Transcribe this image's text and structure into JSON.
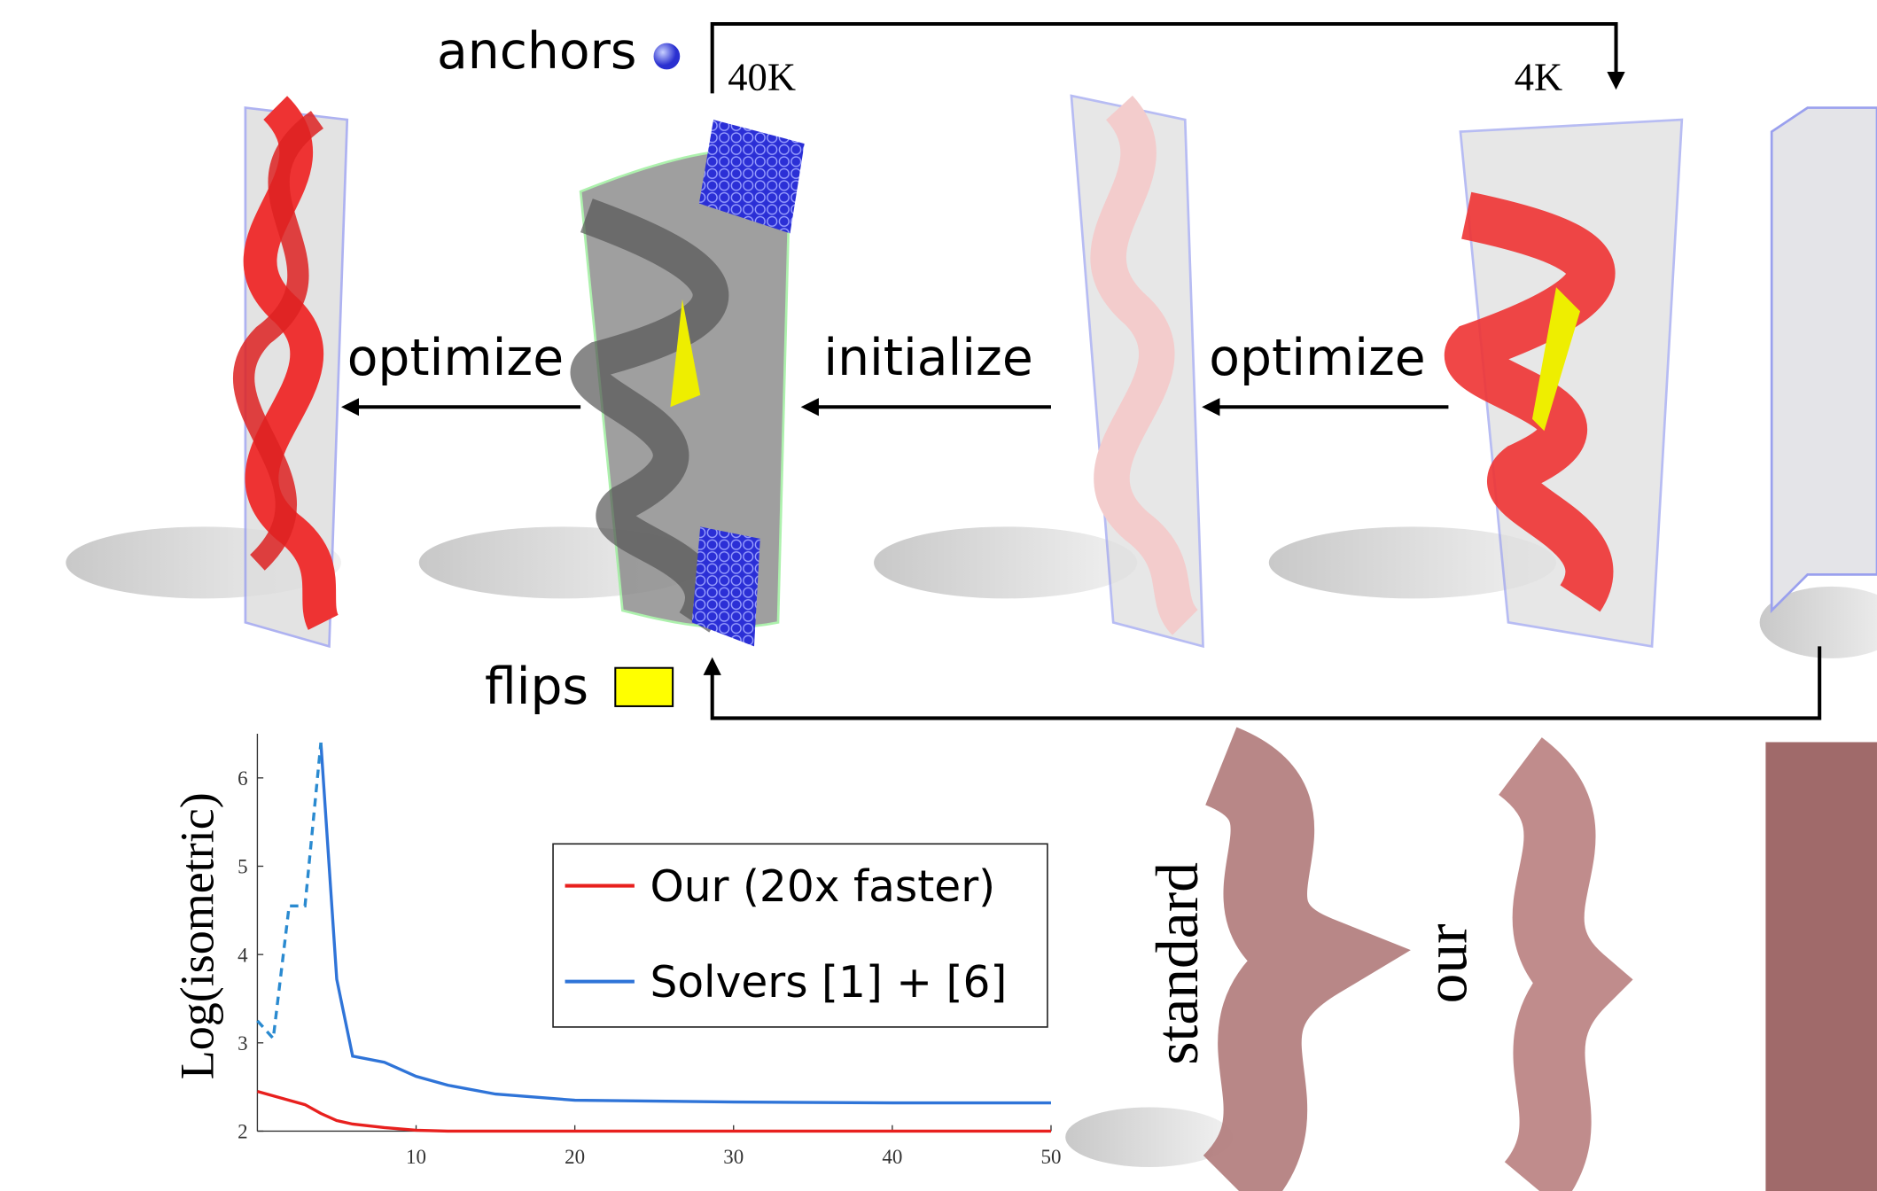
{
  "labels": {
    "anchors": "anchors",
    "res_high": "40K",
    "res_low": "4K",
    "flips": "flips",
    "step_left": "optimize",
    "step_middle": "initialize",
    "step_right": "optimize",
    "standard": "standard",
    "our": "our"
  },
  "chart_data": {
    "type": "line",
    "y_label": "Log(isometric)",
    "x": [
      0,
      1,
      2,
      3,
      4,
      5,
      6,
      8,
      10,
      12,
      15,
      20,
      30,
      40,
      50
    ],
    "series": [
      {
        "name": "Our (20x faster)",
        "color": "#e8201e",
        "values": [
          2.45,
          2.4,
          2.35,
          2.3,
          2.2,
          2.12,
          2.08,
          2.04,
          2.01,
          2.0,
          2.0,
          2.0,
          2.0,
          2.0,
          2.0
        ]
      },
      {
        "name": "Solvers [1] + [6]",
        "color": "#2f74d8",
        "values": [
          null,
          null,
          null,
          null,
          6.4,
          3.72,
          2.85,
          2.78,
          2.62,
          2.52,
          2.42,
          2.35,
          2.33,
          2.32,
          2.32
        ]
      },
      {
        "color": "#2a8ad0",
        "dashed": true,
        "values": [
          3.25,
          3.05,
          4.55,
          4.55,
          6.4,
          null,
          null,
          null,
          null,
          null,
          null,
          null,
          null,
          null,
          null
        ]
      }
    ],
    "xlim": [
      0,
      50
    ],
    "ylim": [
      2,
      6.5
    ],
    "xticks": [
      10,
      20,
      30,
      40,
      50
    ],
    "yticks": [
      2,
      3,
      4,
      5,
      6
    ],
    "legend": "upper right"
  }
}
